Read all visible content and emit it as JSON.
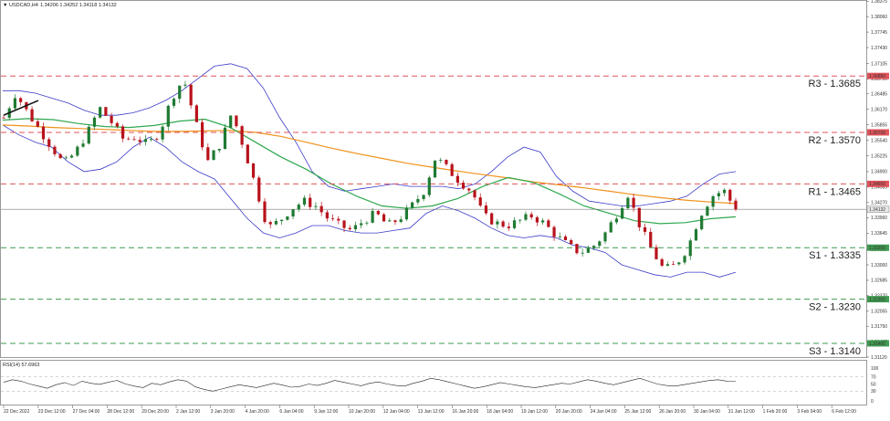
{
  "header": {
    "marker": "▼",
    "symbol": "USDCAD,H4",
    "ohlc": "1.34206 1.34252 1.34118 1.34132"
  },
  "rsi_header": "RSI(14) 57.6963",
  "colors": {
    "bull": "#1f7a32",
    "bear": "#b8121b",
    "upper_band": "#3b3bc8",
    "ma_long": "#f0921a",
    "ma_mid": "#2fa84f",
    "resistance": "#e0545a",
    "support": "#3f9b50",
    "current": "#7a7a7a"
  },
  "chart_data": [
    {
      "type": "candlestick",
      "title": "USDCAD,H4",
      "ylim": [
        1.3112,
        1.3838
      ],
      "y_ticks": [
        "1.38375",
        "1.38060",
        "1.37745",
        "1.37430",
        "1.37105",
        "1.36790",
        "1.36485",
        "1.36170",
        "1.35855",
        "1.35540",
        "1.35225",
        "1.34900",
        "1.34585",
        "1.34270",
        "1.33960",
        "1.33645",
        "1.33310",
        "1.33000",
        "1.32685",
        "1.32370",
        "1.32055",
        "1.31750",
        "1.31435",
        "1.31120"
      ],
      "x_ticks": [
        "22 Dec 2022",
        "23 Dec 12:00",
        "27 Dec 04:00",
        "28 Dec 12:00",
        "29 Dec 20:00",
        "2 Jan 12:00",
        "3 Jan 20:00",
        "4 Jan 20:00",
        "6 Jan 04:00",
        "9 Jan 12:00",
        "10 Jan 20:00",
        "12 Jan 04:00",
        "13 Jan 12:00",
        "16 Jan 20:00",
        "18 Jan 04:00",
        "19 Jan 12:00",
        "20 Jan 20:00",
        "24 Jan 04:00",
        "25 Jan 12:00",
        "26 Jan 20:00",
        "30 Jan 04:00",
        "31 Jan 12:00",
        "1 Feb 20:00",
        "3 Feb 04:00",
        "6 Feb 12:00"
      ],
      "current_price": "1.34132",
      "levels": [
        {
          "name": "R3 - 1.3685",
          "value": 1.3685,
          "axis_label": "1.36850",
          "kind": "resistance"
        },
        {
          "name": "R2 - 1.3570",
          "value": 1.357,
          "axis_label": "1.35700",
          "kind": "resistance"
        },
        {
          "name": "R1 - 1.3465",
          "value": 1.3465,
          "axis_label": "1.34650",
          "kind": "resistance"
        },
        {
          "name": "S1 - 1.3335",
          "value": 1.3335,
          "axis_label": "1.33350",
          "kind": "support"
        },
        {
          "name": "S2 - 1.3230",
          "value": 1.323,
          "axis_label": "1.32300",
          "kind": "support"
        },
        {
          "name": "S3 - 1.3140",
          "value": 1.314,
          "axis_label": "1.31400",
          "kind": "support"
        }
      ],
      "series": [
        {
          "name": "Bollinger upper",
          "values": [
            1.3655,
            1.3655,
            1.365,
            1.364,
            1.363,
            1.3615,
            1.3605,
            1.3605,
            1.361,
            1.362,
            1.3635,
            1.3655,
            1.368,
            1.3705,
            1.371,
            1.37,
            1.366,
            1.36,
            1.355,
            1.349,
            1.346,
            1.345,
            1.3455,
            1.346,
            1.3465,
            1.346,
            1.346,
            1.346,
            1.3455,
            1.3465,
            1.349,
            1.352,
            1.354,
            1.353,
            1.348,
            1.345,
            1.343,
            1.3425,
            1.342,
            1.342,
            1.3425,
            1.343,
            1.344,
            1.3465,
            1.3485,
            1.349
          ]
        },
        {
          "name": "Bollinger lower",
          "values": [
            1.3585,
            1.3565,
            1.355,
            1.354,
            1.351,
            1.349,
            1.3495,
            1.351,
            1.354,
            1.356,
            1.354,
            1.351,
            1.349,
            1.3475,
            1.3435,
            1.3395,
            1.3365,
            1.3355,
            1.3365,
            1.338,
            1.338,
            1.337,
            1.3365,
            1.3365,
            1.337,
            1.3375,
            1.3405,
            1.342,
            1.341,
            1.3395,
            1.3375,
            1.336,
            1.3355,
            1.336,
            1.3355,
            1.334,
            1.3335,
            1.3325,
            1.33,
            1.329,
            1.328,
            1.3275,
            1.3285,
            1.3285,
            1.3275,
            1.3285
          ]
        },
        {
          "name": "Moving average (orange)",
          "values": [
            1.3585,
            1.3583,
            1.358,
            1.3578,
            1.3576,
            1.3574,
            1.3572,
            1.3572,
            1.3573,
            1.3574,
            1.357,
            1.3562,
            1.355,
            1.3538,
            1.3527,
            1.3517,
            1.3507,
            1.3499,
            1.3491,
            1.3484,
            1.3477,
            1.3469,
            1.3463,
            1.3457,
            1.345,
            1.3443,
            1.3437,
            1.3432,
            1.3428,
            1.3425
          ]
        },
        {
          "name": "Moving average (green)",
          "values": [
            1.3595,
            1.3598,
            1.3596,
            1.3588,
            1.3582,
            1.358,
            1.3584,
            1.3593,
            1.3597,
            1.358,
            1.355,
            1.352,
            1.3495,
            1.3465,
            1.344,
            1.342,
            1.3415,
            1.342,
            1.3435,
            1.346,
            1.3478,
            1.3468,
            1.3445,
            1.342,
            1.3405,
            1.339,
            1.3384,
            1.3386,
            1.3394,
            1.3398
          ]
        }
      ]
    },
    {
      "type": "line",
      "title": "RSI(14) 57.6963",
      "ylim": [
        0,
        100
      ],
      "y_ticks": [
        "100",
        "70",
        "50",
        "30",
        "0"
      ],
      "reference_levels": [
        70,
        30
      ],
      "series": [
        {
          "name": "RSI(14)",
          "values": [
            55,
            62,
            58,
            50,
            44,
            38,
            48,
            54,
            46,
            58,
            52,
            49,
            55,
            60,
            50,
            44,
            40,
            52,
            48,
            56,
            62,
            58,
            42,
            35,
            30,
            36,
            42,
            48,
            44,
            40,
            46,
            52,
            47,
            41,
            43,
            50,
            46,
            52,
            60,
            55,
            50,
            45,
            52,
            56,
            50,
            46,
            44,
            52,
            58,
            66,
            62,
            56,
            50,
            44,
            38,
            42,
            48,
            54,
            50,
            46,
            42,
            40,
            44,
            48,
            52,
            50,
            56,
            62,
            58,
            52,
            48,
            54,
            60,
            66,
            58,
            50,
            46,
            44,
            48,
            52,
            56,
            60,
            62,
            58,
            57.7
          ]
        }
      ]
    }
  ]
}
